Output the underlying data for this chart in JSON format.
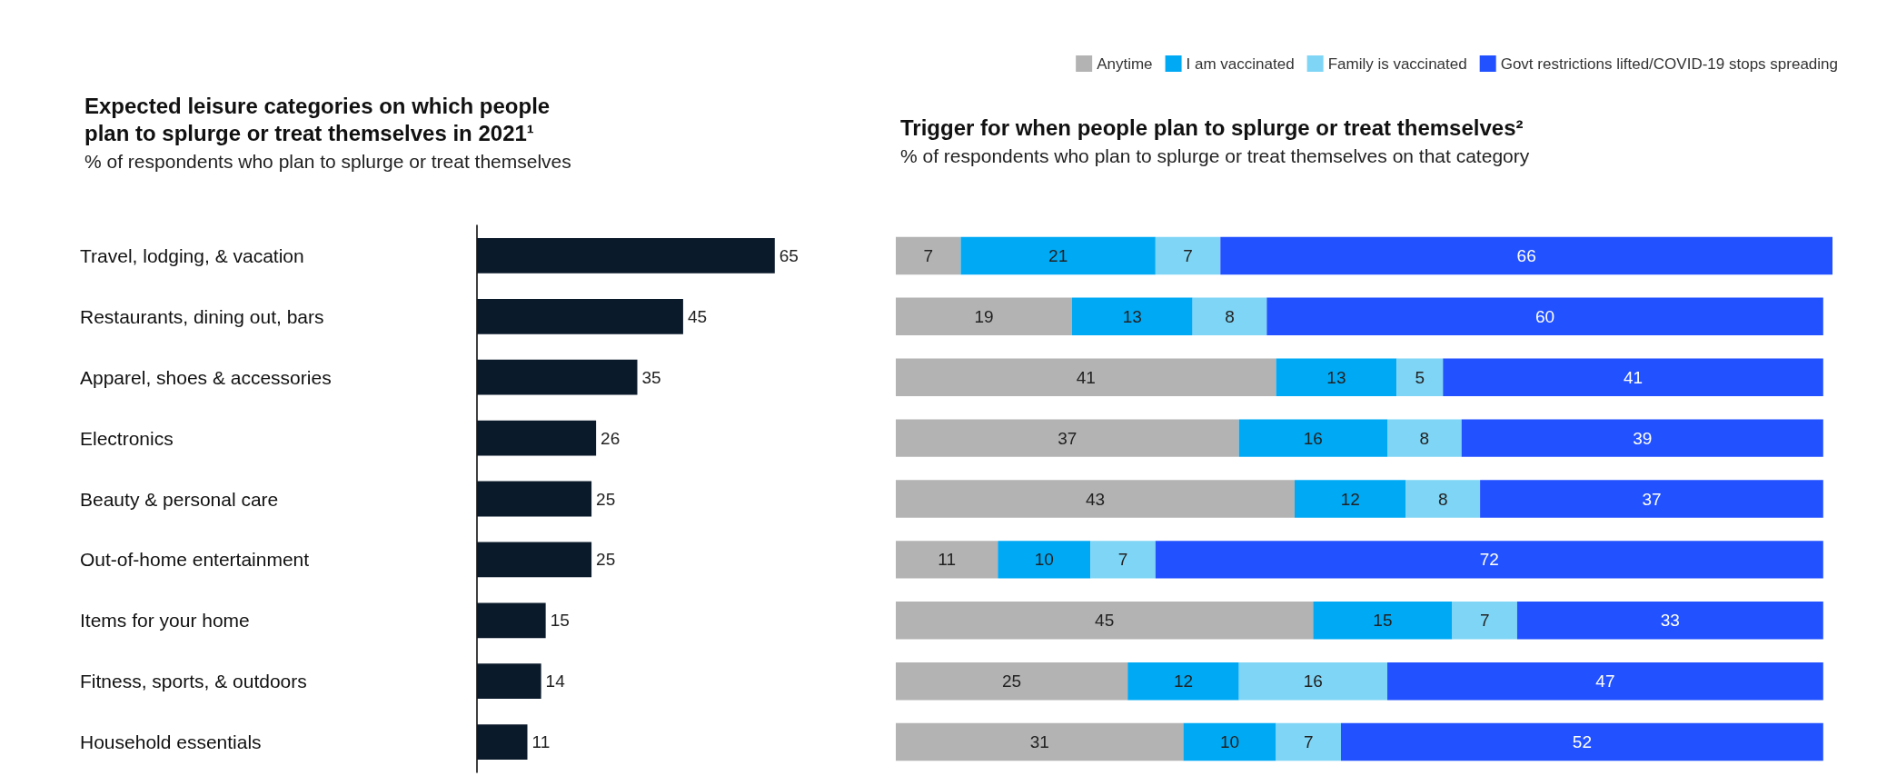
{
  "chart_data": [
    {
      "type": "bar",
      "orientation": "horizontal",
      "title": "Expected leisure categories on which people\nplan to splurge or treat themselves in 2021¹",
      "subtitle": "% of respondents who plan to splurge or treat themselves",
      "categories": [
        "Travel, lodging, & vacation",
        "Restaurants, dining out, bars",
        "Apparel, shoes & accessories",
        "Electronics",
        "Beauty & personal care",
        "Out-of-home entertainment",
        "Items for your home",
        "Fitness, sports, & outdoors",
        "Household essentials"
      ],
      "values": [
        65,
        45,
        35,
        26,
        25,
        25,
        15,
        14,
        11
      ],
      "color": "#0b1a2b",
      "data_labels": true
    },
    {
      "type": "bar",
      "orientation": "horizontal",
      "stacked": true,
      "title": "Trigger for when people plan to splurge or treat themselves²",
      "subtitle": "% of respondents who plan to splurge or treat themselves on that category",
      "categories": [
        null,
        null,
        null,
        null,
        null,
        null,
        null,
        null,
        null
      ],
      "legend": "top right",
      "data_labels": true,
      "series": [
        {
          "name": "Anytime",
          "color": "#b3b3b3",
          "values": [
            7,
            19,
            41,
            37,
            43,
            11,
            45,
            25,
            31
          ]
        },
        {
          "name": "I am vaccinated",
          "color": "#00a9f4",
          "values": [
            21,
            13,
            13,
            16,
            12,
            10,
            15,
            12,
            10
          ]
        },
        {
          "name": "Family is vaccinated",
          "color": "#7fd5f5",
          "values": [
            7,
            8,
            5,
            8,
            8,
            7,
            7,
            16,
            7
          ]
        },
        {
          "name": "Govt restrictions lifted/COVID-19 stops spreading",
          "color": "#2251ff",
          "values": [
            66,
            60,
            41,
            39,
            37,
            72,
            33,
            47,
            52
          ]
        }
      ]
    }
  ]
}
